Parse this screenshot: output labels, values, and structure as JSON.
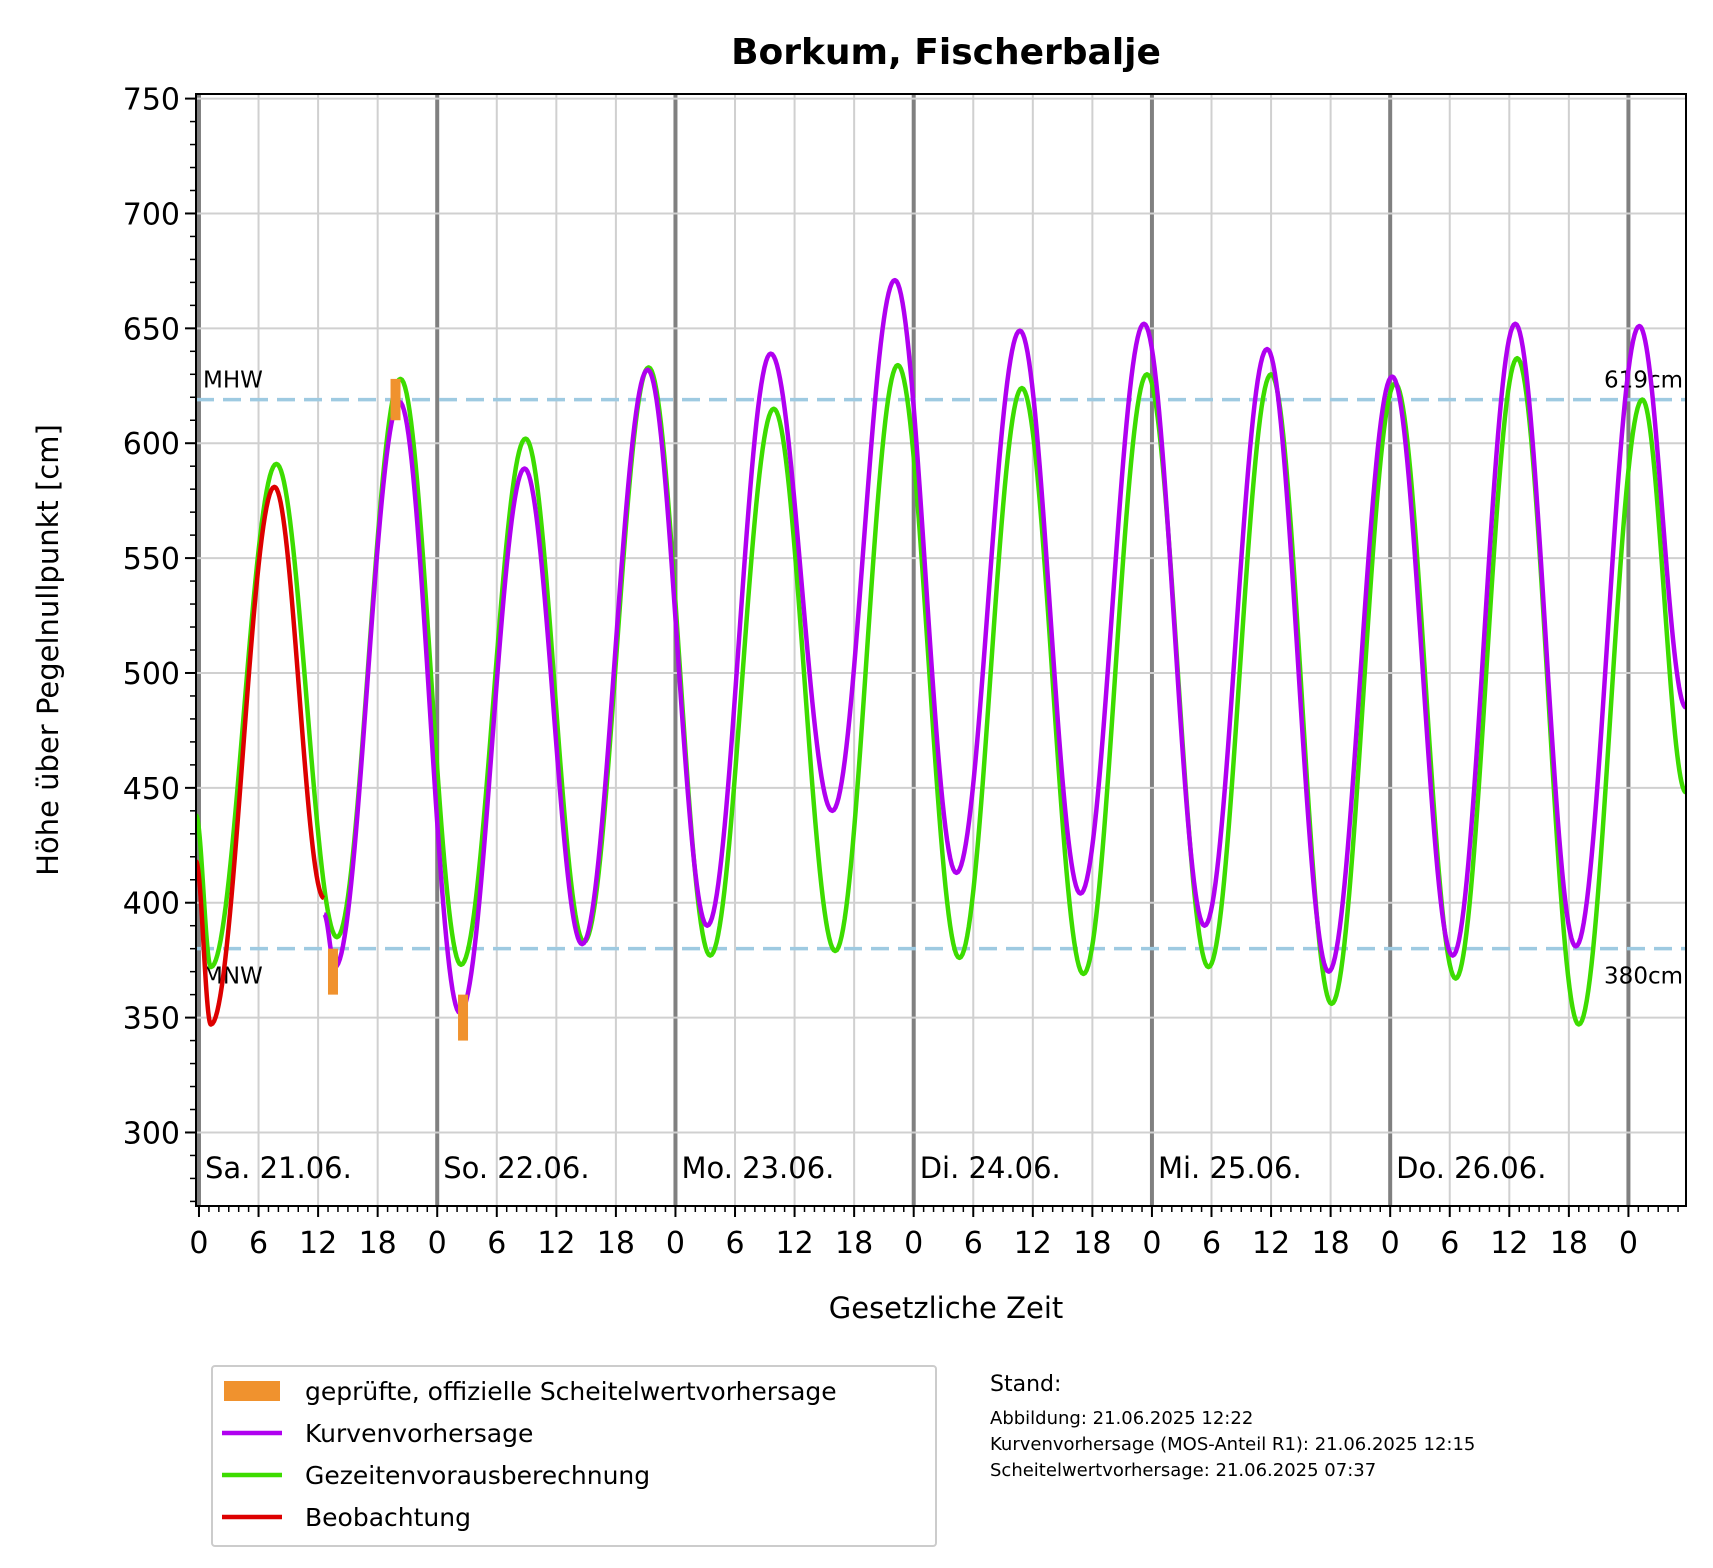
{
  "chart_data": {
    "type": "line",
    "title": "Borkum, Fischerbalje",
    "xlabel": "Gesetzliche Zeit",
    "ylabel": "Höhe über Pegelnullpunkt [cm]",
    "xlim_hours": [
      -0.3,
      149.8
    ],
    "ylim": [
      268,
      752
    ],
    "y_ticks": [
      300,
      350,
      400,
      450,
      500,
      550,
      600,
      650,
      700,
      750
    ],
    "x_tick_hours": [
      0,
      6,
      12,
      18,
      24,
      30,
      36,
      42,
      48,
      54,
      60,
      66,
      72,
      78,
      84,
      90,
      96,
      102,
      108,
      114,
      120,
      126,
      132,
      138,
      144
    ],
    "x_tick_labels": [
      "0",
      "6",
      "12",
      "18",
      "0",
      "6",
      "12",
      "18",
      "0",
      "6",
      "12",
      "18",
      "0",
      "6",
      "12",
      "18",
      "0",
      "6",
      "12",
      "18",
      "0",
      "6",
      "12",
      "18",
      "0"
    ],
    "grid": true,
    "day_labels": [
      "Sa. 21.06.",
      "So. 22.06.",
      "Mo. 23.06.",
      "Di. 24.06.",
      "Mi. 25.06.",
      "Do. 26.06."
    ],
    "reference_lines": [
      {
        "name": "MHW",
        "value": 619,
        "value_label": "619cm",
        "color": "#9ecae1"
      },
      {
        "name": "MNW",
        "value": 380,
        "value_label": "380cm",
        "color": "#9ecae1"
      }
    ],
    "series": [
      {
        "name": "Kurvenvorhersage",
        "color": "#b000f0",
        "start_hour": 12.6,
        "extrema": [
          [
            12.6,
            395
          ],
          [
            13.7,
            372
          ],
          [
            20.2,
            618
          ],
          [
            26.3,
            352
          ],
          [
            32.8,
            589
          ],
          [
            38.6,
            382
          ],
          [
            45.2,
            632
          ],
          [
            51.2,
            390
          ],
          [
            57.6,
            639
          ],
          [
            63.8,
            440
          ],
          [
            70.1,
            671
          ],
          [
            76.3,
            413
          ],
          [
            82.7,
            649
          ],
          [
            88.8,
            404
          ],
          [
            95.2,
            652
          ],
          [
            101.3,
            390
          ],
          [
            107.6,
            641
          ],
          [
            113.8,
            370
          ],
          [
            120.2,
            629
          ],
          [
            126.3,
            377
          ],
          [
            132.6,
            652
          ],
          [
            138.7,
            381
          ],
          [
            145.1,
            651
          ],
          [
            149.8,
            485
          ]
        ]
      },
      {
        "name": "Gezeitenvorausberechnung",
        "color": "#3ddc00",
        "start_hour": -0.3,
        "extrema": [
          [
            -0.3,
            438
          ],
          [
            1.2,
            372
          ],
          [
            7.8,
            591
          ],
          [
            13.9,
            385
          ],
          [
            20.3,
            628
          ],
          [
            26.4,
            373
          ],
          [
            32.9,
            602
          ],
          [
            38.8,
            383
          ],
          [
            45.3,
            633
          ],
          [
            51.5,
            377
          ],
          [
            57.9,
            615
          ],
          [
            64.1,
            379
          ],
          [
            70.4,
            634
          ],
          [
            76.6,
            376
          ],
          [
            82.9,
            624
          ],
          [
            89.1,
            369
          ],
          [
            95.5,
            630
          ],
          [
            101.7,
            372
          ],
          [
            108.0,
            630
          ],
          [
            114.1,
            356
          ],
          [
            120.5,
            626
          ],
          [
            126.6,
            367
          ],
          [
            132.8,
            637
          ],
          [
            139.0,
            347
          ],
          [
            145.4,
            619
          ],
          [
            149.8,
            448
          ]
        ]
      },
      {
        "name": "Beobachtung",
        "color": "#dd0000",
        "start_hour": -0.3,
        "end_hour": 12.6,
        "extrema": [
          [
            -0.3,
            418
          ],
          [
            1.2,
            347
          ],
          [
            7.6,
            581
          ],
          [
            12.6,
            402
          ]
        ]
      }
    ],
    "scheitelwert_bars": [
      {
        "hour": 19.8,
        "low": 610,
        "high": 628
      },
      {
        "hour": 13.5,
        "low": 360,
        "high": 380
      },
      {
        "hour": 26.6,
        "low": 340,
        "high": 360
      }
    ],
    "legend": {
      "placement": "bottom-left",
      "entries": [
        {
          "label": "geprüfte, offizielle Scheitelwertvorhersage",
          "color": "#f0922e",
          "kind": "patch"
        },
        {
          "label": "Kurvenvorhersage",
          "color": "#b000f0",
          "kind": "line"
        },
        {
          "label": "Gezeitenvorausberechnung",
          "color": "#3ddc00",
          "kind": "line"
        },
        {
          "label": "Beobachtung",
          "color": "#dd0000",
          "kind": "line"
        }
      ]
    }
  },
  "stand": {
    "heading": "Stand:",
    "lines": [
      "Abbildung: 21.06.2025 12:22",
      "Kurvenvorhersage (MOS-Anteil R1): 21.06.2025 12:15",
      "Scheitelwertvorhersage: 21.06.2025 07:37"
    ]
  }
}
